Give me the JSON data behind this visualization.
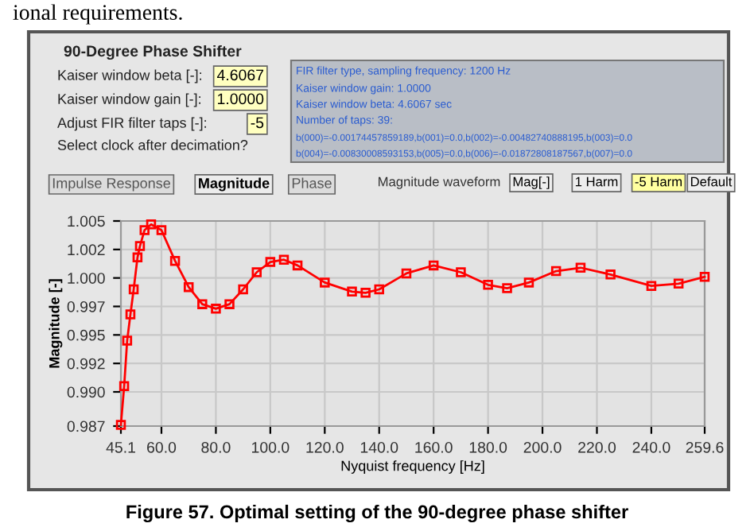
{
  "chart_data": {
    "type": "line",
    "xlabel": "Nyquist frequency [Hz]",
    "ylabel": "Magnitude [-]",
    "x": [
      45.1,
      46.3,
      47.4,
      48.6,
      49.8,
      51.2,
      52.1,
      53.8,
      56.2,
      60,
      65,
      70,
      75,
      80,
      85,
      90,
      95,
      100,
      105,
      110,
      120,
      130,
      135,
      140,
      150,
      160,
      170,
      180,
      187,
      195,
      205,
      214,
      225,
      240,
      250,
      259.6
    ],
    "series": [
      {
        "color": "#ff0000",
        "values": [
          0.9871,
          0.9905,
          0.9945,
          0.9968,
          0.999,
          1.0018,
          1.0028,
          1.0042,
          1.0047,
          1.0042,
          1.0015,
          0.9992,
          0.9977,
          0.9973,
          0.9977,
          0.999,
          1.0005,
          1.0014,
          1.0016,
          1.0011,
          0.9996,
          0.9988,
          0.9987,
          0.999,
          1.0004,
          1.0011,
          1.0005,
          0.9994,
          0.9991,
          0.9996,
          1.0006,
          1.0009,
          1.0003,
          0.9993,
          0.9995,
          1.0001
        ]
      }
    ],
    "xlim": [
      45.1,
      259.6
    ],
    "ylim": [
      0.987,
      1.005
    ],
    "xticks": [
      45.1,
      {
        "value": 60,
        "label": "60.0"
      },
      {
        "value": 80,
        "label": "80.0"
      },
      {
        "value": 100,
        "label": "100.0"
      },
      {
        "value": 120,
        "label": "120.0"
      },
      {
        "value": 140,
        "label": "140.0"
      },
      {
        "value": 160,
        "label": "160.0"
      },
      {
        "value": 180,
        "label": "180.0"
      },
      {
        "value": 200,
        "label": "200.0"
      },
      {
        "value": 220,
        "label": "220.0"
      },
      {
        "value": 240,
        "label": "240.0"
      },
      259.6
    ],
    "yticks": [
      0.987,
      {
        "value": 0.99,
        "label": "0.990"
      },
      {
        "value": 0.9925,
        "label": "0.992"
      },
      0.995,
      {
        "value": 0.9975,
        "label": "0.997"
      },
      {
        "value": 1.0,
        "label": "1.000"
      },
      {
        "value": 1.0025,
        "label": "1.002"
      },
      1.005
    ],
    "grid": true,
    "marker": "square",
    "line_style": "solid",
    "annotations": [
      "ional requirements.",
      "90-Degree Phase Shifter",
      "Kaiser window beta [-]:",
      "4.6067",
      "Kaiser window gain [-]:",
      "1.0000",
      "Adjust FIR filter taps [-]:",
      "-5",
      "Select clock after decimation?",
      "FIR filter type, sampling frequency: 1200 Hz",
      "Kaiser window gain: 1.0000",
      "Kaiser window beta: 4.6067 sec",
      "Number of taps: 39:",
      "b(000)=-0.00174457859189,b(001)=0.0,b(002)=-0.00482740888195,b(003)=0.0",
      "b(004)=-0.00830008593153,b(005)=0.0,b(006)=-0.01872808187567,b(007)=0.0",
      "Impulse Response",
      "Magnitude",
      "Phase",
      "Magnitude waveform",
      "Mag[-]",
      "1 Harm",
      "-5 Harm",
      "Default",
      "Figure 57. Optimal setting of the 90-degree phase shifter"
    ]
  }
}
